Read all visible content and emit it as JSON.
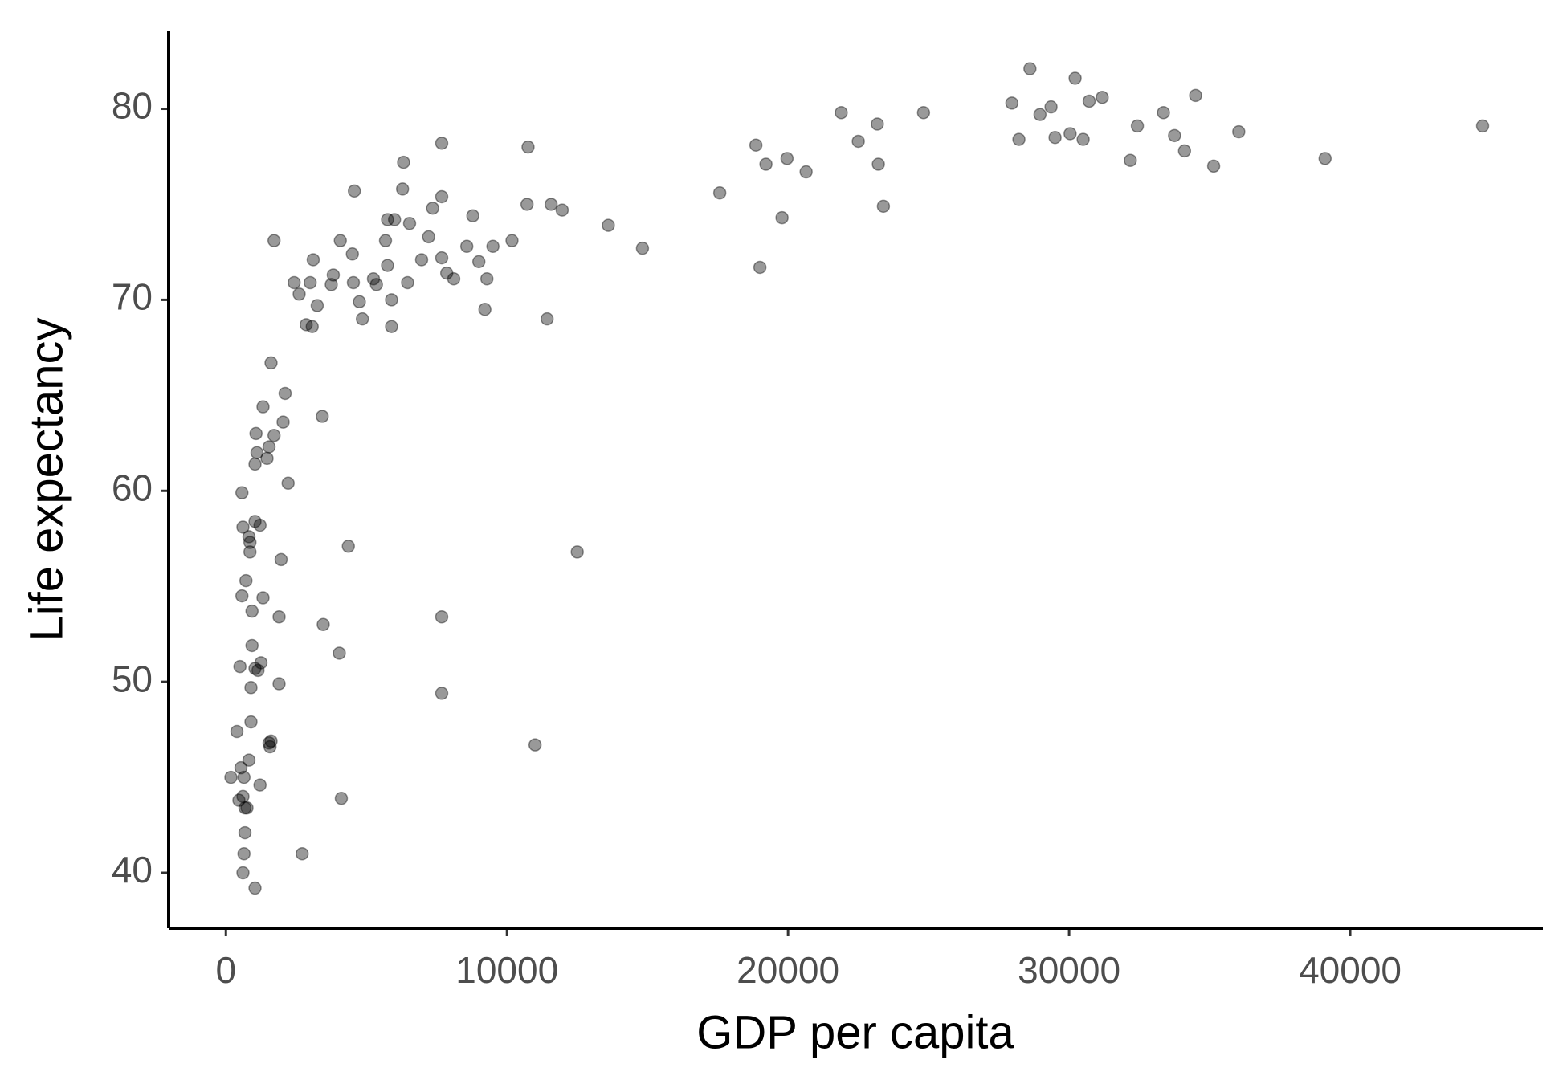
{
  "chart_data": {
    "type": "scatter",
    "x_label": "GDP per capita",
    "y_label": "Life expectancy",
    "color": "#000000",
    "opacity": 0.4,
    "xlim": [
      -2036,
      46857
    ],
    "ylim": [
      37.1,
      84.1
    ],
    "xticks": [
      0,
      10000,
      20000,
      30000,
      40000
    ],
    "yticks": [
      40,
      50,
      60,
      70,
      80
    ],
    "x": [
      179,
      393,
      536,
      500,
      571,
      571,
      607,
      607,
      643,
      464,
      679,
      750,
      679,
      643,
      607,
      1036,
      714,
      821,
      857,
      857,
      929,
      929,
      893,
      893,
      821,
      1036,
      1143,
      1250,
      1036,
      1214,
      1321,
      1214,
      1536,
      1607,
      1571,
      1036,
      1071,
      1107,
      1321,
      1464,
      1536,
      1714,
      1607,
      2036,
      2107,
      2214,
      1964,
      1893,
      1893,
      1714,
      2714,
      3429,
      3464,
      4036,
      4107,
      4357,
      7679,
      7679,
      11000,
      12500,
      11429,
      2429,
      2607,
      3000,
      3107,
      3250,
      2857,
      3071,
      3750,
      3821,
      4071,
      4500,
      4536,
      4571,
      4750,
      4857,
      5250,
      5357,
      5679,
      5750,
      5750,
      5893,
      5893,
      6000,
      6286,
      6321,
      6464,
      6536,
      6964,
      7214,
      7357,
      7679,
      7679,
      7679,
      7857,
      8107,
      8571,
      8786,
      9000,
      9286,
      9214,
      9500,
      10179,
      10714,
      10750,
      11571,
      11964,
      13607,
      14821,
      17571,
      18857,
      19214,
      19000,
      19786,
      19964,
      20643,
      21893,
      22500,
      23179,
      23214,
      23393,
      24821,
      27964,
      28214,
      28607,
      28964,
      29357,
      29500,
      30036,
      30214,
      30500,
      30714,
      31179,
      32179,
      32429,
      33357,
      33750,
      34107,
      34500,
      35143,
      36036,
      39107,
      44714
    ],
    "y": [
      45.0,
      47.4,
      45.5,
      50.8,
      54.5,
      59.9,
      58.1,
      44.0,
      45.0,
      43.8,
      43.4,
      43.4,
      42.1,
      41.0,
      40.0,
      39.2,
      55.3,
      57.6,
      57.3,
      56.8,
      53.7,
      51.9,
      49.7,
      47.9,
      45.9,
      50.7,
      50.6,
      51.0,
      58.4,
      58.2,
      54.4,
      44.6,
      46.8,
      46.9,
      46.6,
      61.4,
      63.0,
      62.0,
      64.4,
      61.7,
      62.3,
      62.9,
      66.7,
      63.6,
      65.1,
      60.4,
      56.4,
      53.4,
      49.9,
      73.1,
      41.0,
      63.9,
      53.0,
      51.5,
      43.9,
      57.1,
      53.4,
      49.4,
      46.7,
      56.8,
      69.0,
      70.9,
      70.3,
      70.9,
      72.1,
      69.7,
      68.7,
      68.6,
      70.8,
      71.3,
      73.1,
      72.4,
      70.9,
      75.7,
      69.9,
      69.0,
      71.1,
      70.8,
      73.1,
      74.2,
      71.8,
      70.0,
      68.6,
      74.2,
      75.8,
      77.2,
      70.9,
      74.0,
      72.1,
      73.3,
      74.8,
      78.2,
      75.4,
      72.2,
      71.4,
      71.1,
      72.8,
      74.4,
      72.0,
      71.1,
      69.5,
      72.8,
      73.1,
      75.0,
      78.0,
      75.0,
      74.7,
      73.9,
      72.7,
      75.6,
      78.1,
      77.1,
      71.7,
      74.3,
      77.4,
      76.7,
      79.8,
      78.3,
      79.2,
      77.1,
      74.9,
      79.8,
      80.3,
      78.4,
      82.1,
      79.7,
      80.1,
      78.5,
      78.7,
      81.6,
      78.4,
      80.4,
      80.6,
      77.3,
      79.1,
      79.8,
      78.6,
      77.8,
      80.7,
      77.0,
      78.8,
      77.4,
      79.1
    ]
  }
}
